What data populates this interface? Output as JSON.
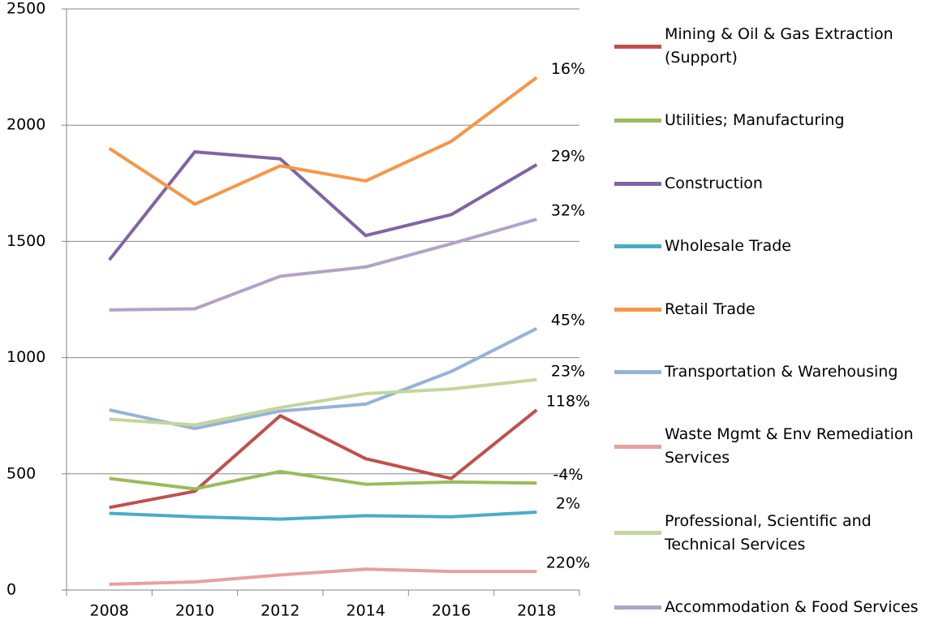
{
  "chart_data": {
    "type": "line",
    "categories": [
      "2008",
      "2010",
      "2012",
      "2014",
      "2016",
      "2018"
    ],
    "ylim": [
      0,
      2500
    ],
    "yticks": [
      0,
      500,
      1000,
      1500,
      2000,
      2500
    ],
    "grid": true,
    "series": [
      {
        "name": "Mining & Oil & Gas Extraction (Support)",
        "color": "#c0504d",
        "values": [
          355,
          425,
          750,
          565,
          480,
          775
        ],
        "end_label": "118%"
      },
      {
        "name": "Utilities; Manufacturing",
        "color": "#9bbb59",
        "values": [
          480,
          435,
          510,
          455,
          465,
          460
        ],
        "end_label": "-4%"
      },
      {
        "name": "Construction",
        "color": "#8064a2",
        "values": [
          1420,
          1885,
          1855,
          1525,
          1615,
          1830
        ],
        "end_label": "29%"
      },
      {
        "name": "Wholesale Trade",
        "color": "#4bacc6",
        "values": [
          330,
          315,
          305,
          320,
          315,
          335
        ],
        "end_label": "2%"
      },
      {
        "name": "Retail Trade",
        "color": "#f79646",
        "values": [
          1900,
          1660,
          1825,
          1760,
          1930,
          2205
        ],
        "end_label": "16%"
      },
      {
        "name": "Transportation & Warehousing",
        "color": "#95b3d7",
        "values": [
          775,
          695,
          770,
          800,
          940,
          1125
        ],
        "end_label": "45%"
      },
      {
        "name": "Waste Mgmt & Env Remediation Services",
        "color": "#e6a09e",
        "values": [
          25,
          35,
          65,
          90,
          80,
          80
        ],
        "end_label": "220%"
      },
      {
        "name": "Professional, Scientific and Technical Services",
        "color": "#c3d69b",
        "values": [
          735,
          710,
          785,
          845,
          865,
          905
        ],
        "end_label": "23%"
      },
      {
        "name": "Accommodation & Food Services",
        "color": "#b3a2c7",
        "values": [
          1205,
          1210,
          1350,
          1390,
          1490,
          1595
        ],
        "end_label": "32%"
      }
    ]
  }
}
